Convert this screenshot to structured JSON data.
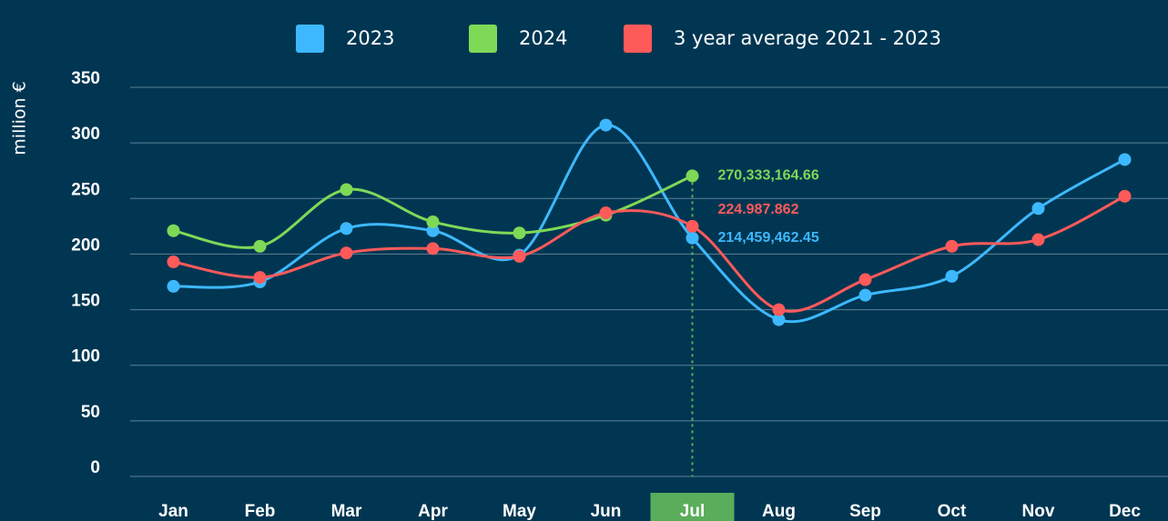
{
  "chart_data": {
    "type": "line",
    "y_label": "million €",
    "categories": [
      "Jan",
      "Feb",
      "Mar",
      "Apr",
      "May",
      "Jun",
      "Jul",
      "Aug",
      "Sep",
      "Oct",
      "Nov",
      "Dec"
    ],
    "highlight": "Jul",
    "series": [
      {
        "name": "2023",
        "color": "#3db8ff",
        "values": [
          171,
          175,
          223,
          221,
          199,
          316,
          214.45946245,
          141,
          163,
          180,
          241,
          285
        ],
        "value_labels": [
          null,
          null,
          null,
          null,
          null,
          null,
          "214,459,462.45",
          null,
          null,
          null,
          null,
          null
        ]
      },
      {
        "name": "2024",
        "color": "#7ed957",
        "values": [
          221,
          207,
          258,
          229,
          219,
          235,
          270.33316466,
          null,
          null,
          null,
          null,
          null
        ],
        "value_labels": [
          null,
          null,
          null,
          null,
          null,
          null,
          "270,333,164.66",
          null,
          null,
          null,
          null,
          null
        ]
      },
      {
        "name": "3 year average 2021 - 2023",
        "color": "#ff5a5a",
        "values": [
          193,
          179,
          201,
          205,
          198,
          237,
          224.987862,
          150,
          177,
          207,
          213,
          252
        ],
        "value_labels": [
          null,
          null,
          null,
          null,
          null,
          null,
          "224.987.862",
          null,
          null,
          null,
          null,
          null
        ]
      }
    ],
    "ylim": [
      0,
      350
    ],
    "yticks": [
      0,
      50,
      100,
      150,
      200,
      250,
      300,
      350
    ],
    "grid": true,
    "legend": "top"
  }
}
